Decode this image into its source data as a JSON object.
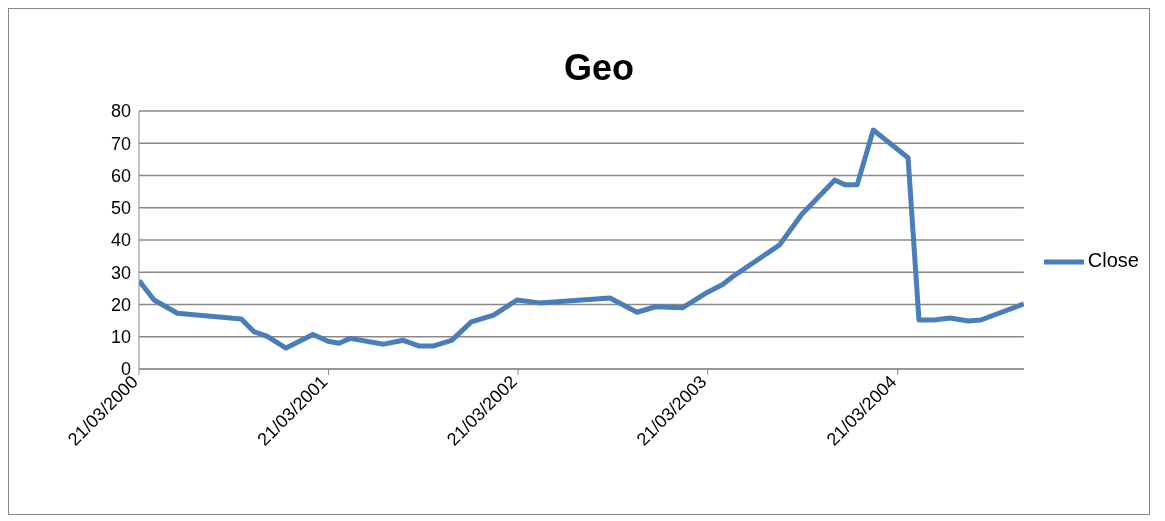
{
  "chart_data": {
    "type": "line",
    "title": "Geo",
    "x": [
      "2000-03-21",
      "2000-04-19",
      "2000-06-03",
      "2000-10-04",
      "2000-10-28",
      "2000-11-23",
      "2000-12-29",
      "2001-02-19",
      "2001-03-20",
      "2001-04-10",
      "2001-05-02",
      "2001-07-05",
      "2001-08-12",
      "2001-09-12",
      "2001-10-08",
      "2001-11-13",
      "2001-12-21",
      "2002-02-02",
      "2002-03-19",
      "2002-05-01",
      "2002-09-14",
      "2002-11-05",
      "2002-12-11",
      "2003-02-01",
      "2003-03-21",
      "2003-04-19",
      "2003-05-08",
      "2003-08-06",
      "2003-09-18",
      "2003-11-21",
      "2003-12-10",
      "2004-01-03",
      "2004-02-03",
      "2004-04-10",
      "2004-05-01",
      "2004-05-30",
      "2004-06-30",
      "2004-08-04",
      "2004-08-28",
      "2004-11-19"
    ],
    "series": [
      {
        "name": "Close",
        "color": "#4a7ebb",
        "values": [
          27.4,
          21.4,
          17.3,
          15.5,
          11.6,
          10.1,
          6.5,
          10.7,
          8.6,
          8.0,
          9.5,
          7.7,
          8.9,
          7.1,
          7.1,
          8.9,
          14.6,
          16.7,
          21.4,
          20.5,
          22.0,
          17.6,
          19.3,
          19.0,
          23.8,
          26.2,
          28.6,
          38.4,
          47.9,
          58.6,
          57.1,
          57.1,
          74.1,
          65.5,
          15.2,
          15.2,
          15.8,
          14.9,
          15.2,
          20.2
        ]
      }
    ],
    "xlim": [
      "2000-03-21",
      "2004-11-19"
    ],
    "xticks": [
      {
        "value": "2000-03-21",
        "label": "21/03/2000"
      },
      {
        "value": "2001-03-21",
        "label": "21/03/2001"
      },
      {
        "value": "2002-03-21",
        "label": "21/03/2002"
      },
      {
        "value": "2003-03-21",
        "label": "21/03/2003"
      },
      {
        "value": "2004-03-21",
        "label": "21/03/2004"
      }
    ],
    "ylim": [
      0,
      80
    ],
    "yticks": [
      0,
      10,
      20,
      30,
      40,
      50,
      60,
      70,
      80
    ],
    "grid": "y",
    "legend": "right",
    "marker": "none",
    "line_style": "solid"
  }
}
